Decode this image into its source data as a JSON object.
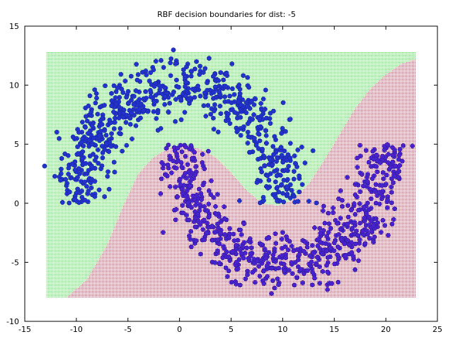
{
  "chart_data": {
    "type": "scatter",
    "title": "RBF decision boundaries for dist: -5",
    "xlabel": "",
    "ylabel": "",
    "xlim": [
      -15,
      25
    ],
    "ylim": [
      -10,
      15
    ],
    "x_ticks": [
      -15,
      -10,
      -5,
      0,
      5,
      10,
      15,
      20,
      25
    ],
    "y_ticks": [
      -10,
      -5,
      0,
      5,
      10,
      15
    ],
    "grid": false,
    "legend": "none",
    "decision_regions": {
      "x_range": [
        -12.9,
        22.9
      ],
      "y_range": [
        -8,
        12.8
      ],
      "class_a_color": "#58c858",
      "class_b_color": "#9a3044",
      "boundary_x": [
        -12.9,
        -11,
        -9,
        -7,
        -5.5,
        -4,
        -2.5,
        -1,
        0.5,
        2,
        3.5,
        5,
        6.5,
        8,
        9.5,
        11,
        12.5,
        14,
        15.5,
        17,
        18.5,
        20,
        21.5,
        22.9
      ],
      "boundary_y": [
        -8,
        -8,
        -6.5,
        -3.5,
        -0.3,
        2.5,
        3.9,
        4.7,
        4.9,
        4.6,
        3.9,
        2.6,
        1.1,
        0,
        -0.2,
        0.3,
        1.6,
        3.6,
        5.8,
        8.0,
        9.7,
        10.9,
        11.8,
        12.2
      ]
    },
    "series": [
      {
        "class": "upper_moon",
        "color": "#2233cc",
        "center": [
          0,
          0
        ],
        "radius": 10,
        "angle_range_deg": [
          0,
          180
        ],
        "noise": 1.0,
        "count": 700
      },
      {
        "class": "lower_moon",
        "color": "#4a22cc",
        "center": [
          10,
          5
        ],
        "radius": 10,
        "angle_range_deg": [
          180,
          360
        ],
        "noise": 1.0,
        "count": 700
      }
    ]
  }
}
